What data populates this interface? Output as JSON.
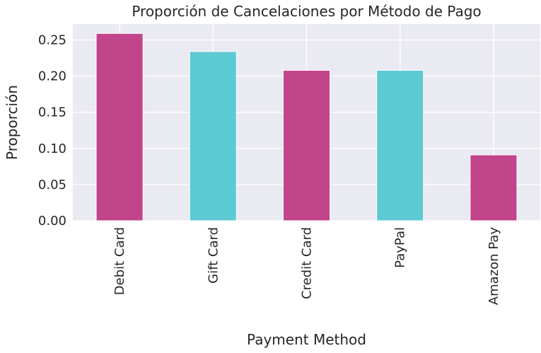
{
  "chart_data": {
    "type": "bar",
    "title": "Proporción de Cancelaciones por Método de Pago",
    "xlabel": "Payment Method",
    "ylabel": "Proporción",
    "categories": [
      "Debit Card",
      "Gift Card",
      "Credit Card",
      "PayPal",
      "Amazon Pay"
    ],
    "values": [
      0.259,
      0.234,
      0.208,
      0.208,
      0.091
    ],
    "ylim": [
      0,
      0.272
    ],
    "yticks": [
      0.0,
      0.05,
      0.1,
      0.15,
      0.2,
      0.25
    ],
    "ytick_labels": [
      "0.00",
      "0.05",
      "0.10",
      "0.15",
      "0.20",
      "0.25"
    ],
    "bar_colors": [
      "#c2448b",
      "#5ccad3",
      "#c2448b",
      "#5ccad3",
      "#c2448b"
    ],
    "background": "#eaeaf2",
    "grid": true,
    "grid_color": "#ffffff",
    "legend": "none"
  }
}
